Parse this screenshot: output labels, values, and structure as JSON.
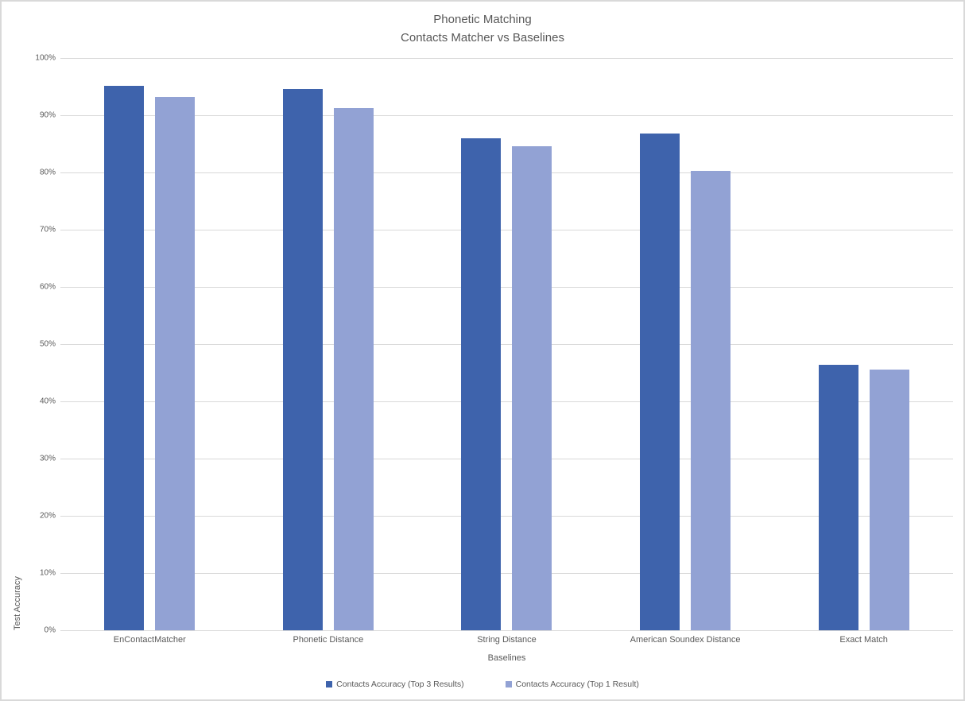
{
  "title": {
    "line1": "Phonetic Matching",
    "line2": "Contacts Matcher vs Baselines"
  },
  "chart_data": {
    "type": "bar",
    "title": "Phonetic Matching — Contacts Matcher vs Baselines",
    "categories": [
      "EnContactMatcher",
      "Phonetic Distance",
      "String Distance",
      "American Soundex Distance",
      "Exact Match"
    ],
    "series": [
      {
        "name": "Contacts Accuracy (Top 3 Results)",
        "color": "#3E63AC",
        "values": [
          95.2,
          94.6,
          86.0,
          86.8,
          46.4
        ]
      },
      {
        "name": "Contacts Accuracy (Top 1 Result)",
        "color": "#92A2D4",
        "values": [
          93.2,
          91.3,
          84.6,
          80.3,
          45.5
        ]
      }
    ],
    "xlabel": "Baselines",
    "ylabel": "Test Accuracy",
    "ylim": [
      0,
      100
    ],
    "ytick_step": 10,
    "ytick_suffix": "%",
    "grid": true,
    "legend_position": "bottom"
  },
  "colors": {
    "background": "#FFFFFF",
    "gridline": "#D9D9D9",
    "border": "#D9D9D9",
    "text": "#595959"
  }
}
